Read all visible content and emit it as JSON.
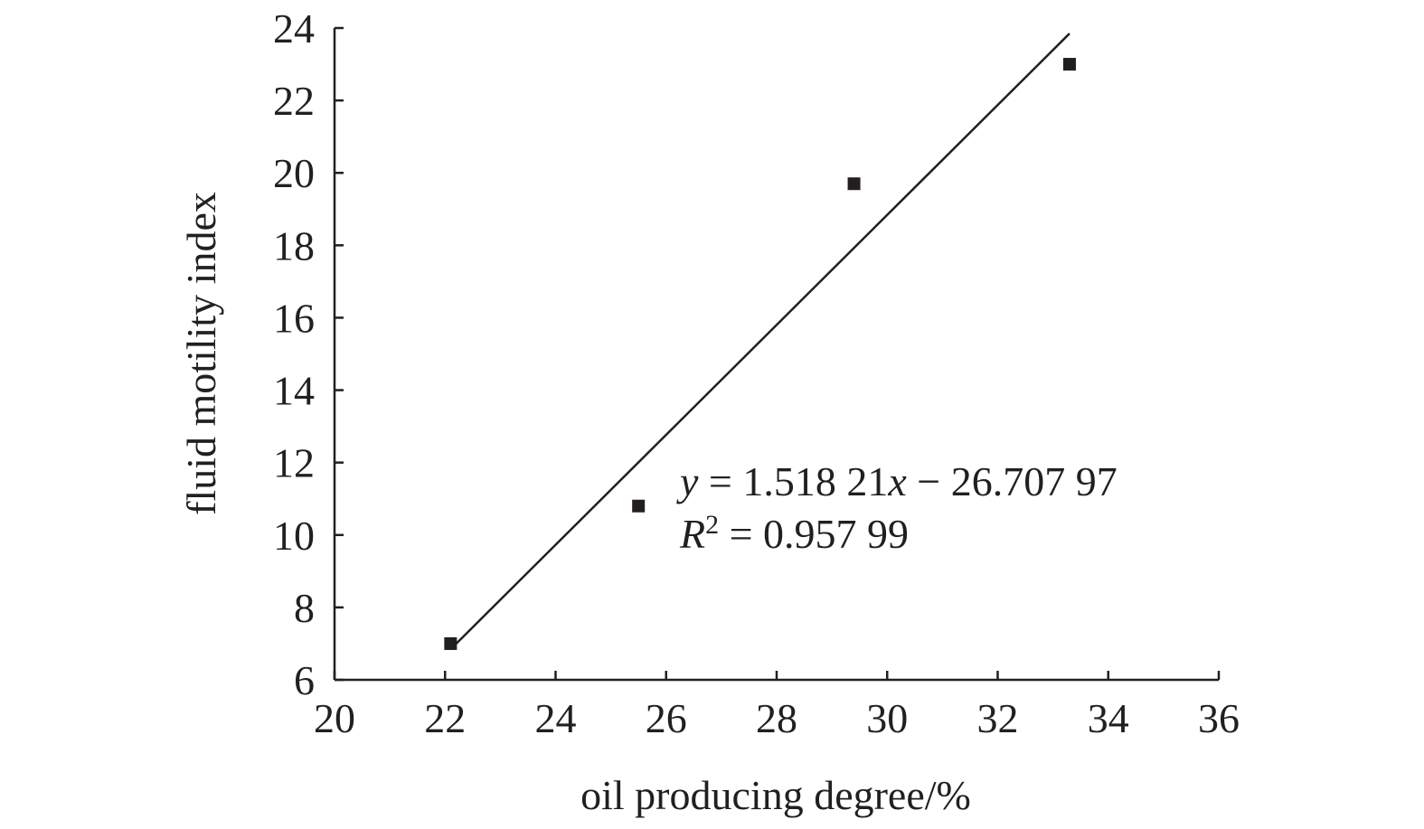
{
  "chart_data": {
    "type": "scatter",
    "title": "",
    "xlabel": "oil producing degree/%",
    "ylabel": "fluid motility index",
    "xlim": [
      20,
      36
    ],
    "ylim": [
      6,
      24
    ],
    "xticks": [
      20,
      22,
      24,
      26,
      28,
      30,
      32,
      34,
      36
    ],
    "yticks": [
      6,
      8,
      10,
      12,
      14,
      16,
      18,
      20,
      22,
      24
    ],
    "grid": false,
    "legend": "none",
    "series": [
      {
        "marker": "square",
        "color": "#231f20",
        "points": [
          {
            "x": 22.1,
            "y": 7.0
          },
          {
            "x": 25.5,
            "y": 10.8
          },
          {
            "x": 29.4,
            "y": 19.7
          },
          {
            "x": 33.3,
            "y": 23.0
          }
        ]
      }
    ],
    "trendline": {
      "type": "linear",
      "slope": 1.51821,
      "intercept": -26.70797,
      "x_range": [
        22.1,
        33.3
      ],
      "color": "#231f20"
    },
    "annotation": {
      "eq_var_y": "y",
      "eq_middle": " = 1.518 21",
      "eq_var_x": "x",
      "eq_tail": " − 26.707 97",
      "r2_var": "R",
      "r2_sup": "2",
      "r2_tail": " = 0.957 99"
    }
  }
}
